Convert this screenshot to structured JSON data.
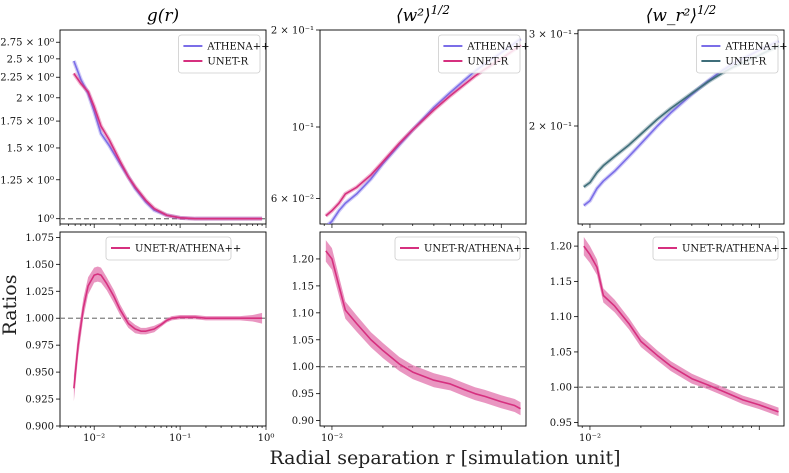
{
  "figure": {
    "xlabel": "Radial separation r [simulation unit]",
    "ylabel": "Ratios"
  },
  "colors": {
    "athena": "#7b6ee8",
    "unet": "#d6307f",
    "unet_band": "#e06aa6",
    "athena_band": "#3f6e7a",
    "reference": "#808080"
  },
  "chart_data": [
    {
      "type": "line",
      "title": "g(r)",
      "xscale": "log",
      "yscale": "log",
      "xlim": [
        0.004,
        1.0
      ],
      "ylim": [
        0.97,
        2.95
      ],
      "xticks": [
        0.01,
        0.1,
        1
      ],
      "xticklabels": [
        "",
        "",
        ""
      ],
      "yticks": [
        1.0,
        1.25,
        1.5,
        1.75,
        2.0,
        2.25,
        2.5,
        2.75
      ],
      "yticklabels": [
        "10⁰",
        "1.25 × 10⁰",
        "1.5 × 10⁰",
        "1.75 × 10⁰",
        "2 × 10⁰",
        "2.25 × 10⁰",
        "2.5 × 10⁰",
        "2.75 × 10⁰"
      ],
      "reference_line": 1.0,
      "legend": "top-right",
      "series": [
        {
          "name": "ATHENA++",
          "color_key": "athena",
          "x": [
            0.0058,
            0.007,
            0.0085,
            0.01,
            0.012,
            0.015,
            0.02,
            0.025,
            0.03,
            0.04,
            0.05,
            0.07,
            0.1,
            0.15,
            0.2,
            0.3,
            0.5,
            0.7,
            0.9
          ],
          "y": [
            2.47,
            2.22,
            2.05,
            1.85,
            1.63,
            1.52,
            1.37,
            1.27,
            1.19,
            1.1,
            1.05,
            1.02,
            1.005,
            1.0,
            1.0,
            1.0,
            1.0,
            1.0,
            1.0
          ]
        },
        {
          "name": "UNET-R",
          "color_key": "unet",
          "x": [
            0.0058,
            0.007,
            0.0085,
            0.01,
            0.012,
            0.015,
            0.02,
            0.025,
            0.03,
            0.04,
            0.05,
            0.07,
            0.1,
            0.15,
            0.2,
            0.3,
            0.5,
            0.7,
            0.9
          ],
          "y": [
            2.3,
            2.17,
            2.07,
            1.9,
            1.7,
            1.57,
            1.39,
            1.27,
            1.2,
            1.11,
            1.06,
            1.02,
            1.005,
            1.0,
            1.0,
            1.0,
            1.0,
            1.0,
            1.0
          ]
        }
      ]
    },
    {
      "type": "line",
      "title": "⟨w²⟩^1/2",
      "xscale": "log",
      "yscale": "log",
      "xlim": [
        0.0085,
        0.14
      ],
      "ylim": [
        0.05,
        0.2
      ],
      "xticks": [
        0.01
      ],
      "xticklabels": [
        ""
      ],
      "yticks": [
        0.06,
        0.1,
        0.2
      ],
      "yticklabels": [
        "6 × 10⁻²",
        "10⁻¹",
        "2 × 10⁻¹"
      ],
      "legend": "top-left",
      "series": [
        {
          "name": "ATHENA++",
          "color_key": "athena",
          "x": [
            0.0092,
            0.01,
            0.011,
            0.012,
            0.014,
            0.017,
            0.02,
            0.025,
            0.03,
            0.04,
            0.05,
            0.06,
            0.07,
            0.08,
            0.1,
            0.12,
            0.13
          ],
          "y": [
            0.049,
            0.051,
            0.055,
            0.058,
            0.062,
            0.069,
            0.077,
            0.088,
            0.098,
            0.115,
            0.128,
            0.139,
            0.149,
            0.157,
            0.17,
            0.182,
            0.188
          ]
        },
        {
          "name": "UNET-R",
          "color_key": "unet",
          "x": [
            0.0092,
            0.01,
            0.011,
            0.012,
            0.014,
            0.017,
            0.02,
            0.025,
            0.03,
            0.04,
            0.05,
            0.06,
            0.07,
            0.08,
            0.1,
            0.12,
            0.13
          ],
          "y": [
            0.053,
            0.055,
            0.058,
            0.062,
            0.065,
            0.071,
            0.078,
            0.089,
            0.098,
            0.113,
            0.125,
            0.135,
            0.144,
            0.151,
            0.163,
            0.174,
            0.18
          ]
        }
      ]
    },
    {
      "type": "line",
      "title": "⟨w_r²⟩^1/2",
      "xscale": "log",
      "yscale": "log",
      "xlim": [
        0.0085,
        0.14
      ],
      "ylim": [
        0.13,
        0.305
      ],
      "xticks": [
        0.01
      ],
      "xticklabels": [
        ""
      ],
      "yticks": [
        0.2,
        0.3
      ],
      "yticklabels": [
        "2 × 10⁻¹",
        "3 × 10⁻¹"
      ],
      "legend": "top-left",
      "series": [
        {
          "name": "ATHENA++",
          "color_key": "athena",
          "x": [
            0.0092,
            0.01,
            0.011,
            0.012,
            0.014,
            0.017,
            0.02,
            0.025,
            0.03,
            0.04,
            0.05,
            0.06,
            0.07,
            0.08,
            0.1,
            0.12,
            0.13
          ],
          "y": [
            0.141,
            0.144,
            0.152,
            0.157,
            0.164,
            0.175,
            0.185,
            0.2,
            0.212,
            0.23,
            0.244,
            0.255,
            0.263,
            0.269,
            0.279,
            0.287,
            0.291
          ]
        },
        {
          "name": "UNET-R",
          "color_key": "unet_dark",
          "x": [
            0.0092,
            0.01,
            0.011,
            0.012,
            0.014,
            0.017,
            0.02,
            0.025,
            0.03,
            0.04,
            0.05,
            0.06,
            0.07,
            0.08,
            0.1,
            0.12,
            0.13
          ],
          "y": [
            0.153,
            0.156,
            0.163,
            0.168,
            0.175,
            0.184,
            0.193,
            0.206,
            0.216,
            0.231,
            0.243,
            0.252,
            0.259,
            0.264,
            0.273,
            0.281,
            0.285
          ]
        }
      ]
    },
    {
      "type": "line",
      "title": "",
      "xscale": "log",
      "yscale": "linear",
      "xlim": [
        0.004,
        1.0
      ],
      "ylim": [
        0.9,
        1.08
      ],
      "xticks": [
        0.01,
        0.1,
        1
      ],
      "xticklabels": [
        "10⁻²",
        "10⁻¹",
        "10⁰"
      ],
      "yticks": [
        0.9,
        0.925,
        0.95,
        0.975,
        1.0,
        1.025,
        1.05,
        1.075
      ],
      "yticklabels": [
        "0.900",
        "0.925",
        "0.950",
        "0.975",
        "1.000",
        "1.025",
        "1.050",
        "1.075"
      ],
      "reference_line": 1.0,
      "legend": "top-left",
      "series": [
        {
          "name": "UNET-R/ATHENA++",
          "color_key": "unet",
          "x": [
            0.0058,
            0.0065,
            0.0075,
            0.0085,
            0.01,
            0.011,
            0.012,
            0.014,
            0.017,
            0.02,
            0.025,
            0.03,
            0.035,
            0.04,
            0.05,
            0.06,
            0.07,
            0.08,
            0.1,
            0.12,
            0.15,
            0.2,
            0.3,
            0.5,
            0.7,
            0.9
          ],
          "y": [
            0.935,
            0.975,
            1.01,
            1.03,
            1.04,
            1.041,
            1.04,
            1.032,
            1.02,
            1.008,
            0.995,
            0.99,
            0.988,
            0.988,
            0.99,
            0.994,
            0.998,
            1.0,
            1.001,
            1.001,
            1.001,
            1.0,
            1.0,
            1.0,
            1.0,
            1.0
          ],
          "band": [
            0.012,
            0.011,
            0.009,
            0.008,
            0.007,
            0.007,
            0.007,
            0.006,
            0.006,
            0.005,
            0.004,
            0.004,
            0.003,
            0.003,
            0.003,
            0.002,
            0.002,
            0.002,
            0.002,
            0.002,
            0.002,
            0.002,
            0.002,
            0.002,
            0.003,
            0.005
          ]
        }
      ]
    },
    {
      "type": "line",
      "title": "",
      "xscale": "log",
      "yscale": "linear",
      "xlim": [
        0.0085,
        0.14
      ],
      "ylim": [
        0.89,
        1.25
      ],
      "xticks": [
        0.01
      ],
      "xticklabels": [
        "10⁻²"
      ],
      "yticks": [
        0.9,
        0.95,
        1.0,
        1.05,
        1.1,
        1.15,
        1.2
      ],
      "yticklabels": [
        "0.90",
        "0.95",
        "1.00",
        "1.05",
        "1.10",
        "1.15",
        "1.20"
      ],
      "reference_line": 1.0,
      "legend": "top-right",
      "series": [
        {
          "name": "UNET-R/ATHENA++",
          "color_key": "unet",
          "x": [
            0.0092,
            0.01,
            0.011,
            0.012,
            0.014,
            0.017,
            0.02,
            0.025,
            0.03,
            0.04,
            0.05,
            0.06,
            0.07,
            0.08,
            0.1,
            0.12,
            0.13
          ],
          "y": [
            1.215,
            1.2,
            1.15,
            1.105,
            1.08,
            1.05,
            1.03,
            1.005,
            0.99,
            0.975,
            0.968,
            0.958,
            0.95,
            0.945,
            0.935,
            0.928,
            0.922
          ],
          "band": [
            0.02,
            0.02,
            0.018,
            0.016,
            0.015,
            0.014,
            0.014,
            0.013,
            0.013,
            0.013,
            0.012,
            0.012,
            0.012,
            0.012,
            0.012,
            0.012,
            0.012
          ]
        }
      ]
    },
    {
      "type": "line",
      "title": "",
      "xscale": "log",
      "yscale": "linear",
      "xlim": [
        0.0085,
        0.14
      ],
      "ylim": [
        0.945,
        1.22
      ],
      "xticks": [
        0.01
      ],
      "xticklabels": [
        "10⁻²"
      ],
      "yticks": [
        0.95,
        1.0,
        1.05,
        1.1,
        1.15,
        1.2
      ],
      "yticklabels": [
        "0.95",
        "1.00",
        "1.05",
        "1.10",
        "1.15",
        "1.20"
      ],
      "reference_line": 1.0,
      "legend": "top-right",
      "series": [
        {
          "name": "UNET-R/ATHENA++",
          "color_key": "unet",
          "x": [
            0.0092,
            0.01,
            0.011,
            0.012,
            0.014,
            0.017,
            0.02,
            0.025,
            0.03,
            0.04,
            0.05,
            0.06,
            0.07,
            0.08,
            0.1,
            0.12,
            0.13
          ],
          "y": [
            1.2,
            1.188,
            1.17,
            1.13,
            1.115,
            1.09,
            1.065,
            1.045,
            1.03,
            1.012,
            1.003,
            0.995,
            0.988,
            0.982,
            0.975,
            0.968,
            0.965
          ],
          "band": [
            0.013,
            0.012,
            0.011,
            0.01,
            0.009,
            0.008,
            0.008,
            0.007,
            0.007,
            0.007,
            0.006,
            0.006,
            0.006,
            0.006,
            0.006,
            0.006,
            0.006
          ]
        }
      ]
    }
  ]
}
